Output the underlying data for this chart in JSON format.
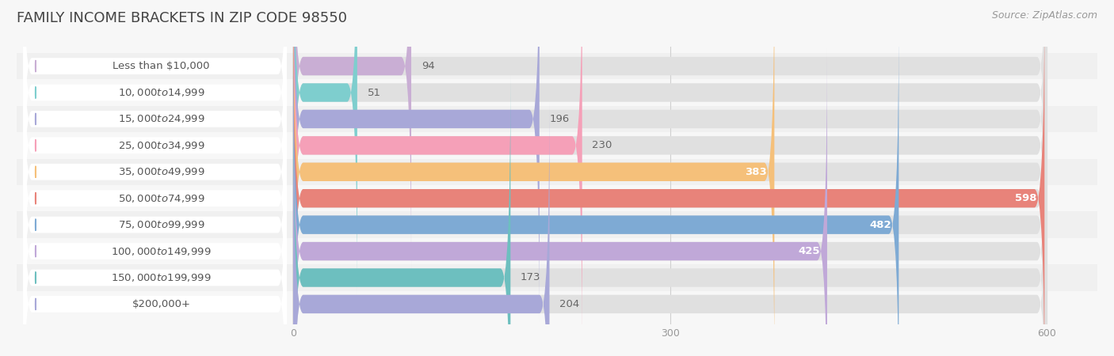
{
  "title": "FAMILY INCOME BRACKETS IN ZIP CODE 98550",
  "source": "Source: ZipAtlas.com",
  "categories": [
    "Less than $10,000",
    "$10,000 to $14,999",
    "$15,000 to $24,999",
    "$25,000 to $34,999",
    "$35,000 to $49,999",
    "$50,000 to $74,999",
    "$75,000 to $99,999",
    "$100,000 to $149,999",
    "$150,000 to $199,999",
    "$200,000+"
  ],
  "values": [
    94,
    51,
    196,
    230,
    383,
    598,
    482,
    425,
    173,
    204
  ],
  "bar_colors": [
    "#c9aed4",
    "#7ecece",
    "#a8a8d8",
    "#f5a0b8",
    "#f5c07a",
    "#e8837a",
    "#7eaad4",
    "#c0a8d8",
    "#6dbfbf",
    "#a8a8d8"
  ],
  "value_threshold_inside": 300,
  "xlim_left": -220,
  "xlim_right": 640,
  "xmax": 600,
  "xticks": [
    0,
    300,
    600
  ],
  "background_color": "#f7f7f7",
  "bar_bg_color": "#ebebeb",
  "row_bg_colors": [
    "#f0f0f0",
    "#f7f7f7"
  ],
  "title_fontsize": 13,
  "source_fontsize": 9,
  "label_fontsize": 9.5,
  "value_fontsize": 9.5
}
